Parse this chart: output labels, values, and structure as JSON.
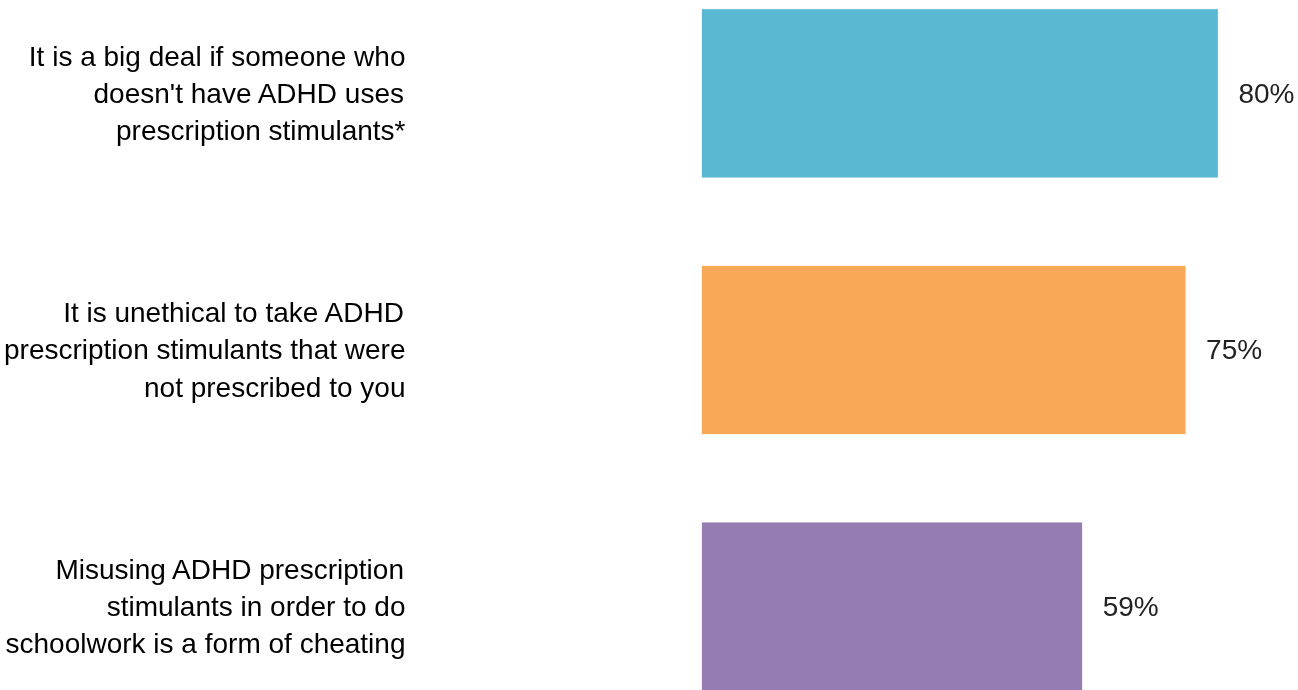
{
  "chart_data": {
    "type": "bar",
    "orientation": "horizontal",
    "categories": [
      "It is a big deal if someone who doesn't have ADHD uses prescription stimulants*",
      "It is unethical to take ADHD prescription stimulants that were not prescribed to you",
      "Misusing ADHD prescription stimulants in order to do schoolwork is a form of cheating"
    ],
    "values": [
      80,
      75,
      59
    ],
    "colors": [
      "#5bb8d3",
      "#f9a857",
      "#957cb2"
    ],
    "value_labels": [
      "80%",
      "75%",
      "59%"
    ],
    "tick_labels": "y",
    "grid": false
  }
}
